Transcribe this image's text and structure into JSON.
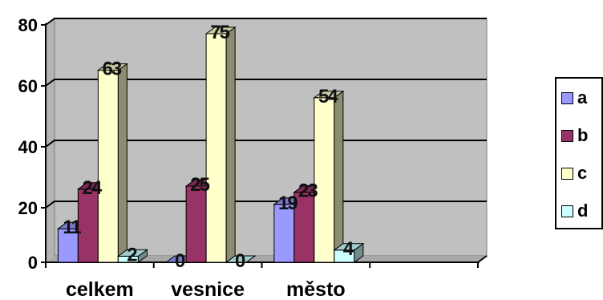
{
  "chart_data": {
    "type": "bar",
    "categories": [
      "celkem",
      "vesnice",
      "město",
      ""
    ],
    "series": [
      {
        "name": "a",
        "values": [
          11,
          0,
          19,
          null
        ],
        "color": "#9999ff",
        "data_labels": [
          "11",
          "0",
          "19",
          ""
        ]
      },
      {
        "name": "b",
        "values": [
          24,
          25,
          23,
          null
        ],
        "color": "#993366",
        "data_labels": [
          "24",
          "25",
          "23",
          ""
        ]
      },
      {
        "name": "c",
        "values": [
          63,
          75,
          54,
          null
        ],
        "color": "#ffffcc",
        "data_labels": [
          "63",
          "75",
          "54",
          ""
        ]
      },
      {
        "name": "d",
        "values": [
          2,
          0,
          4,
          null
        ],
        "color": "#ccffff",
        "data_labels": [
          "2",
          "0",
          "4",
          ""
        ]
      }
    ],
    "y_ticks": [
      "0",
      "20",
      "40",
      "60",
      "80"
    ],
    "ylim": [
      0,
      80
    ],
    "grid": true,
    "legend_position": "right",
    "plot_wall_color": "#c0c0c0"
  }
}
